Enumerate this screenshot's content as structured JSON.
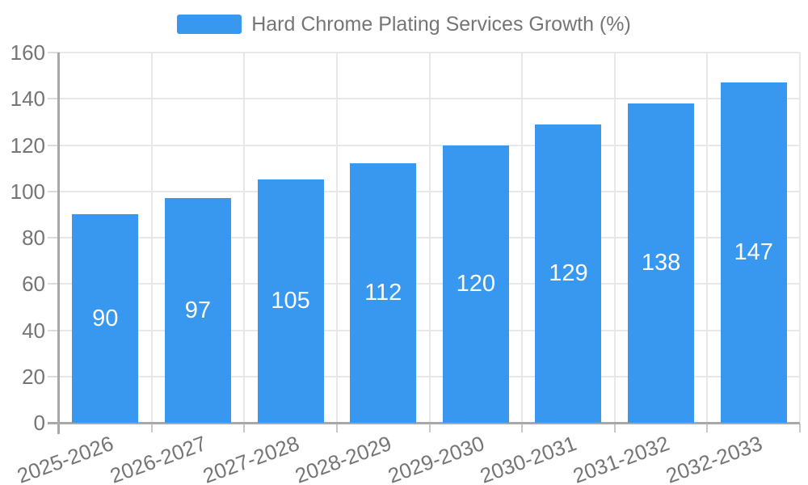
{
  "legend": {
    "label": "Hard Chrome Plating Services Growth (%)"
  },
  "chart_data": {
    "type": "bar",
    "title": "Hard Chrome Plating Services Growth (%)",
    "series_name": "Hard Chrome Plating Services Growth (%)",
    "categories": [
      "2025-2026",
      "2026-2027",
      "2027-2028",
      "2028-2029",
      "2029-2030",
      "2030-2031",
      "2031-2032",
      "2032-2033"
    ],
    "values": [
      90,
      97,
      105,
      112,
      120,
      129,
      138,
      147
    ],
    "xlabel": "",
    "ylabel": "",
    "ylim": [
      0,
      160
    ],
    "ytick_step": 20,
    "grid": true,
    "legend_position": "top-center",
    "x_label_rotation_deg": -20,
    "colors": {
      "bar": "#3898ef",
      "value_label": "#ffffff",
      "axis_text": "#757575",
      "grid_line": "#e8e8e8",
      "left_tick": "#dcdcdc",
      "bottom_tick": "#c8c8c8",
      "axis_line": "#a8a8a8",
      "background": "#ffffff"
    }
  }
}
